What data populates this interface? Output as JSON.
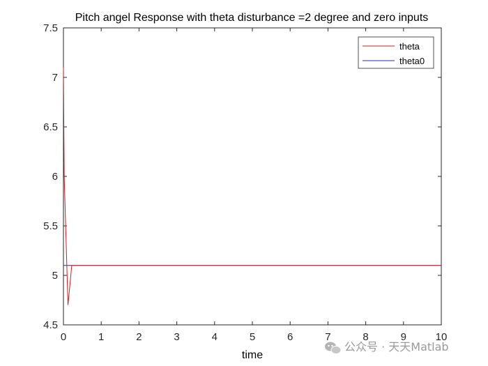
{
  "chart_data": {
    "type": "line",
    "title": "Pitch angel Response with theta disturbance =2 degree and zero inputs",
    "xlabel": "time",
    "ylabel": "",
    "xlim": [
      0,
      10
    ],
    "ylim": [
      4.5,
      7.5
    ],
    "xticks": [
      "0",
      "1",
      "2",
      "3",
      "4",
      "5",
      "6",
      "7",
      "8",
      "9",
      "10"
    ],
    "yticks": [
      "4.5",
      "5",
      "5.5",
      "6",
      "6.5",
      "7",
      "7.5"
    ],
    "grid": false,
    "legend_position": "top-right",
    "series": [
      {
        "name": "theta",
        "color": "#cc1f1f",
        "x": [
          0,
          0.02,
          0.12,
          0.22,
          0.3,
          10
        ],
        "y": [
          7.1,
          6.0,
          4.7,
          5.1,
          5.1,
          5.1
        ]
      },
      {
        "name": "theta0",
        "color": "#2a2aa0",
        "x": [
          0,
          10
        ],
        "y": [
          5.1,
          5.1
        ]
      }
    ]
  },
  "watermark": {
    "icon": "wechat-icon",
    "text": "公众号 · 天天Matlab"
  }
}
